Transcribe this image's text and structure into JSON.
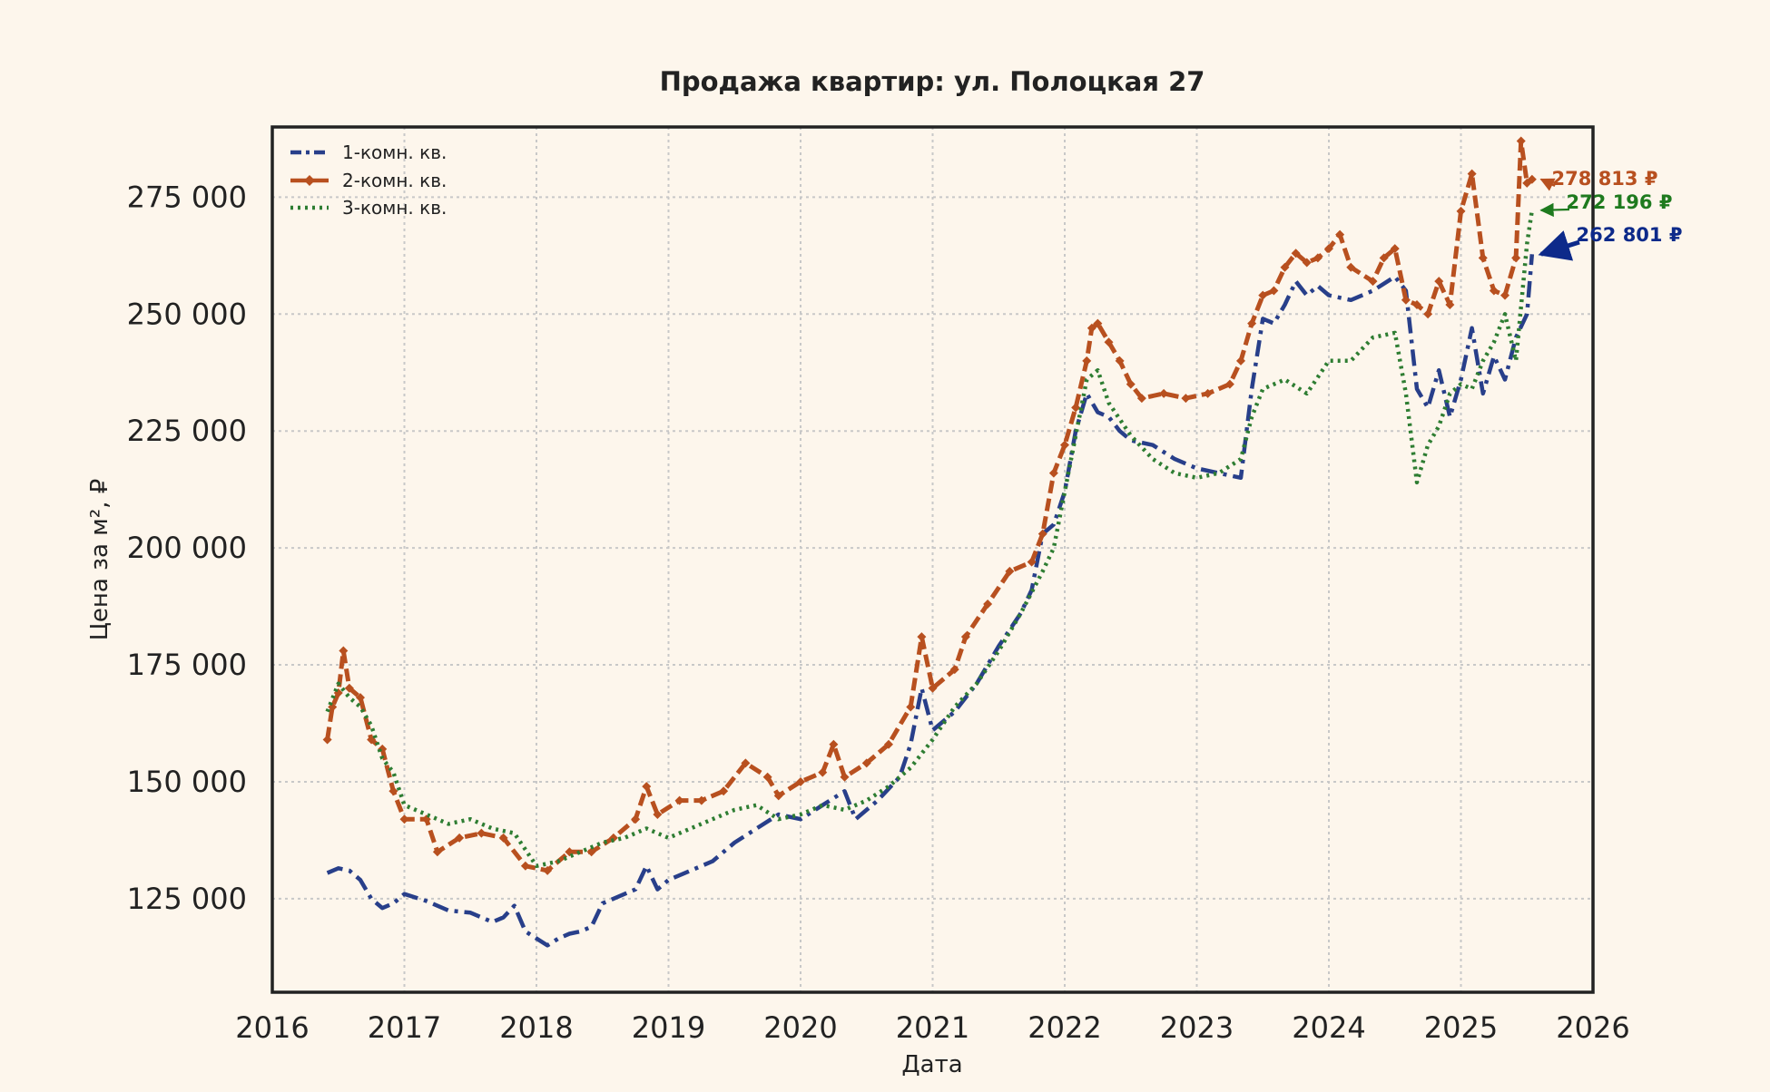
{
  "colors": {
    "background": "#fdf6ec",
    "axes_frame": "#222222",
    "grid": "#c8c8c8",
    "series_1k": "#283f8a",
    "series_2k": "#b8501f",
    "series_3k": "#2e7d32",
    "annotation_1k": "#0d2a8a",
    "annotation_2k": "#b8501f",
    "annotation_3k": "#1e7a1e"
  },
  "chart_data": {
    "type": "line",
    "title": "Продажа квартир: ул. Полоцкая 27",
    "xlabel": "Дата",
    "ylabel": "Цена за м², ₽",
    "x_ticks": [
      "2016",
      "2017",
      "2018",
      "2019",
      "2020",
      "2021",
      "2022",
      "2023",
      "2024",
      "2025",
      "2026"
    ],
    "y_ticks": [
      "125 000",
      "150 000",
      "175 000",
      "200 000",
      "225 000",
      "250 000",
      "275 000"
    ],
    "xlim": [
      "2016-01-01",
      "2026-01-01"
    ],
    "ylim": [
      105000,
      290000
    ],
    "grid": true,
    "legend_position": "top-left",
    "series": [
      {
        "name": "1-комн. кв.",
        "style": "dashdot",
        "color_key": "series_1k",
        "points": [
          [
            "2016-06-01",
            130500
          ],
          [
            "2016-07-01",
            131500
          ],
          [
            "2016-08-01",
            131000
          ],
          [
            "2016-09-01",
            129000
          ],
          [
            "2016-10-01",
            125000
          ],
          [
            "2016-11-01",
            123000
          ],
          [
            "2016-12-01",
            124000
          ],
          [
            "2017-01-01",
            126000
          ],
          [
            "2017-03-01",
            124500
          ],
          [
            "2017-05-01",
            122500
          ],
          [
            "2017-07-01",
            122000
          ],
          [
            "2017-09-01",
            120000
          ],
          [
            "2017-10-01",
            121000
          ],
          [
            "2017-11-01",
            123500
          ],
          [
            "2017-12-01",
            118000
          ],
          [
            "2018-01-01",
            116500
          ],
          [
            "2018-02-01",
            115000
          ],
          [
            "2018-03-01",
            116500
          ],
          [
            "2018-04-01",
            117500
          ],
          [
            "2018-05-01",
            118000
          ],
          [
            "2018-06-01",
            119000
          ],
          [
            "2018-07-01",
            124000
          ],
          [
            "2018-09-01",
            126000
          ],
          [
            "2018-10-01",
            127000
          ],
          [
            "2018-11-01",
            132000
          ],
          [
            "2018-12-01",
            127000
          ],
          [
            "2019-01-01",
            129000
          ],
          [
            "2019-03-01",
            131000
          ],
          [
            "2019-05-01",
            133000
          ],
          [
            "2019-07-01",
            137000
          ],
          [
            "2019-09-01",
            140000
          ],
          [
            "2019-11-01",
            143000
          ],
          [
            "2020-01-01",
            142000
          ],
          [
            "2020-03-01",
            145000
          ],
          [
            "2020-05-01",
            148000
          ],
          [
            "2020-06-01",
            142000
          ],
          [
            "2020-08-01",
            146000
          ],
          [
            "2020-10-01",
            151000
          ],
          [
            "2020-11-01",
            158000
          ],
          [
            "2020-12-01",
            170000
          ],
          [
            "2021-01-01",
            161000
          ],
          [
            "2021-03-01",
            165000
          ],
          [
            "2021-05-01",
            171000
          ],
          [
            "2021-07-01",
            179000
          ],
          [
            "2021-09-01",
            186000
          ],
          [
            "2021-10-01",
            191000
          ],
          [
            "2021-11-01",
            203000
          ],
          [
            "2021-12-01",
            205000
          ],
          [
            "2022-01-01",
            212000
          ],
          [
            "2022-02-01",
            225000
          ],
          [
            "2022-03-01",
            233000
          ],
          [
            "2022-04-01",
            229000
          ],
          [
            "2022-05-01",
            228000
          ],
          [
            "2022-06-01",
            225000
          ],
          [
            "2022-07-01",
            223000
          ],
          [
            "2022-09-01",
            222000
          ],
          [
            "2022-11-01",
            219000
          ],
          [
            "2023-01-01",
            217000
          ],
          [
            "2023-03-01",
            216000
          ],
          [
            "2023-05-01",
            215000
          ],
          [
            "2023-06-01",
            234000
          ],
          [
            "2023-07-01",
            249000
          ],
          [
            "2023-08-01",
            248000
          ],
          [
            "2023-09-01",
            252000
          ],
          [
            "2023-10-01",
            257000
          ],
          [
            "2023-11-01",
            254000
          ],
          [
            "2023-12-01",
            256000
          ],
          [
            "2024-01-01",
            254000
          ],
          [
            "2024-03-01",
            253000
          ],
          [
            "2024-05-01",
            255000
          ],
          [
            "2024-07-01",
            258000
          ],
          [
            "2024-08-01",
            255000
          ],
          [
            "2024-09-01",
            234000
          ],
          [
            "2024-10-01",
            230000
          ],
          [
            "2024-11-01",
            238000
          ],
          [
            "2024-12-01",
            228000
          ],
          [
            "2025-01-01",
            236000
          ],
          [
            "2025-02-01",
            247000
          ],
          [
            "2025-03-01",
            233000
          ],
          [
            "2025-04-01",
            241000
          ],
          [
            "2025-05-01",
            236000
          ],
          [
            "2025-06-01",
            245000
          ],
          [
            "2025-07-01",
            250000
          ],
          [
            "2025-07-15",
            262801
          ]
        ]
      },
      {
        "name": "2-комн. кв.",
        "style": "dashed-diamond",
        "color_key": "series_2k",
        "points": [
          [
            "2016-06-01",
            159000
          ],
          [
            "2016-06-15",
            166000
          ],
          [
            "2016-07-01",
            169000
          ],
          [
            "2016-07-15",
            178000
          ],
          [
            "2016-08-01",
            170000
          ],
          [
            "2016-09-01",
            168000
          ],
          [
            "2016-10-01",
            159000
          ],
          [
            "2016-11-01",
            157000
          ],
          [
            "2016-12-01",
            148000
          ],
          [
            "2017-01-01",
            142000
          ],
          [
            "2017-03-01",
            142000
          ],
          [
            "2017-04-01",
            135000
          ],
          [
            "2017-06-01",
            138000
          ],
          [
            "2017-08-01",
            139000
          ],
          [
            "2017-10-01",
            138000
          ],
          [
            "2017-12-01",
            132000
          ],
          [
            "2018-02-01",
            131000
          ],
          [
            "2018-04-01",
            135000
          ],
          [
            "2018-06-01",
            135000
          ],
          [
            "2018-08-01",
            138000
          ],
          [
            "2018-10-01",
            142000
          ],
          [
            "2018-11-01",
            149000
          ],
          [
            "2018-12-01",
            143000
          ],
          [
            "2019-02-01",
            146000
          ],
          [
            "2019-04-01",
            146000
          ],
          [
            "2019-06-01",
            148000
          ],
          [
            "2019-08-01",
            154000
          ],
          [
            "2019-10-01",
            151000
          ],
          [
            "2019-11-01",
            147000
          ],
          [
            "2020-01-01",
            150000
          ],
          [
            "2020-03-01",
            152000
          ],
          [
            "2020-04-01",
            158000
          ],
          [
            "2020-05-01",
            151000
          ],
          [
            "2020-07-01",
            154000
          ],
          [
            "2020-09-01",
            158000
          ],
          [
            "2020-11-01",
            166000
          ],
          [
            "2020-12-01",
            181000
          ],
          [
            "2021-01-01",
            170000
          ],
          [
            "2021-03-01",
            174000
          ],
          [
            "2021-04-01",
            181000
          ],
          [
            "2021-06-01",
            188000
          ],
          [
            "2021-08-01",
            195000
          ],
          [
            "2021-10-01",
            197000
          ],
          [
            "2021-11-01",
            203000
          ],
          [
            "2021-12-01",
            216000
          ],
          [
            "2022-01-01",
            222000
          ],
          [
            "2022-02-01",
            230000
          ],
          [
            "2022-03-01",
            240000
          ],
          [
            "2022-03-15",
            247000
          ],
          [
            "2022-04-01",
            248000
          ],
          [
            "2022-05-01",
            244000
          ],
          [
            "2022-06-01",
            240000
          ],
          [
            "2022-07-01",
            235000
          ],
          [
            "2022-08-01",
            232000
          ],
          [
            "2022-10-01",
            233000
          ],
          [
            "2022-12-01",
            232000
          ],
          [
            "2023-02-01",
            233000
          ],
          [
            "2023-04-01",
            235000
          ],
          [
            "2023-05-01",
            240000
          ],
          [
            "2023-06-01",
            248000
          ],
          [
            "2023-07-01",
            254000
          ],
          [
            "2023-08-01",
            255000
          ],
          [
            "2023-09-01",
            260000
          ],
          [
            "2023-10-01",
            263000
          ],
          [
            "2023-11-01",
            261000
          ],
          [
            "2023-12-01",
            262000
          ],
          [
            "2024-01-01",
            264000
          ],
          [
            "2024-02-01",
            267000
          ],
          [
            "2024-03-01",
            260000
          ],
          [
            "2024-05-01",
            257000
          ],
          [
            "2024-06-01",
            262000
          ],
          [
            "2024-07-01",
            264000
          ],
          [
            "2024-08-01",
            253000
          ],
          [
            "2024-09-01",
            252000
          ],
          [
            "2024-10-01",
            250000
          ],
          [
            "2024-11-01",
            257000
          ],
          [
            "2024-12-01",
            252000
          ],
          [
            "2025-01-01",
            272000
          ],
          [
            "2025-02-01",
            280000
          ],
          [
            "2025-03-01",
            262000
          ],
          [
            "2025-04-01",
            255000
          ],
          [
            "2025-05-01",
            254000
          ],
          [
            "2025-06-01",
            262000
          ],
          [
            "2025-06-15",
            287000
          ],
          [
            "2025-07-01",
            278000
          ],
          [
            "2025-07-15",
            278813
          ]
        ]
      },
      {
        "name": "3-комн. кв.",
        "style": "dotted",
        "color_key": "series_3k",
        "points": [
          [
            "2016-06-01",
            165000
          ],
          [
            "2016-07-01",
            171000
          ],
          [
            "2016-08-01",
            168000
          ],
          [
            "2016-09-01",
            166000
          ],
          [
            "2016-10-01",
            162000
          ],
          [
            "2016-11-01",
            155000
          ],
          [
            "2016-12-01",
            152000
          ],
          [
            "2017-01-01",
            145000
          ],
          [
            "2017-03-01",
            143000
          ],
          [
            "2017-05-01",
            141000
          ],
          [
            "2017-07-01",
            142000
          ],
          [
            "2017-09-01",
            140000
          ],
          [
            "2017-11-01",
            139000
          ],
          [
            "2018-01-01",
            132000
          ],
          [
            "2018-03-01",
            133000
          ],
          [
            "2018-05-01",
            135000
          ],
          [
            "2018-07-01",
            137000
          ],
          [
            "2018-09-01",
            138000
          ],
          [
            "2018-11-01",
            140000
          ],
          [
            "2019-01-01",
            138000
          ],
          [
            "2019-03-01",
            140000
          ],
          [
            "2019-05-01",
            142000
          ],
          [
            "2019-07-01",
            144000
          ],
          [
            "2019-09-01",
            145000
          ],
          [
            "2019-11-01",
            142000
          ],
          [
            "2020-01-01",
            143000
          ],
          [
            "2020-03-01",
            145000
          ],
          [
            "2020-05-01",
            144000
          ],
          [
            "2020-07-01",
            146000
          ],
          [
            "2020-09-01",
            149000
          ],
          [
            "2020-11-01",
            153000
          ],
          [
            "2021-01-01",
            159000
          ],
          [
            "2021-03-01",
            166000
          ],
          [
            "2021-05-01",
            171000
          ],
          [
            "2021-07-01",
            178000
          ],
          [
            "2021-09-01",
            186000
          ],
          [
            "2021-11-01",
            195000
          ],
          [
            "2021-12-01",
            200000
          ],
          [
            "2022-01-01",
            212000
          ],
          [
            "2022-02-01",
            224000
          ],
          [
            "2022-03-01",
            236000
          ],
          [
            "2022-04-01",
            238000
          ],
          [
            "2022-05-01",
            231000
          ],
          [
            "2022-07-01",
            224000
          ],
          [
            "2022-09-01",
            219000
          ],
          [
            "2022-11-01",
            216000
          ],
          [
            "2023-01-01",
            215000
          ],
          [
            "2023-03-01",
            216000
          ],
          [
            "2023-05-01",
            219000
          ],
          [
            "2023-06-01",
            228000
          ],
          [
            "2023-07-01",
            234000
          ],
          [
            "2023-09-01",
            236000
          ],
          [
            "2023-11-01",
            233000
          ],
          [
            "2024-01-01",
            240000
          ],
          [
            "2024-03-01",
            240000
          ],
          [
            "2024-05-01",
            245000
          ],
          [
            "2024-07-01",
            246000
          ],
          [
            "2024-08-01",
            233000
          ],
          [
            "2024-09-01",
            214000
          ],
          [
            "2024-10-01",
            222000
          ],
          [
            "2024-11-01",
            226000
          ],
          [
            "2024-12-01",
            233000
          ],
          [
            "2025-01-01",
            235000
          ],
          [
            "2025-02-01",
            234000
          ],
          [
            "2025-03-01",
            240000
          ],
          [
            "2025-04-01",
            244000
          ],
          [
            "2025-05-01",
            250000
          ],
          [
            "2025-06-01",
            240000
          ],
          [
            "2025-07-01",
            265000
          ],
          [
            "2025-07-15",
            272196
          ]
        ]
      }
    ],
    "annotations": [
      {
        "text": "278 813 ₽",
        "series": 1,
        "color_key": "annotation_2k"
      },
      {
        "text": "272 196 ₽",
        "series": 2,
        "color_key": "annotation_3k"
      },
      {
        "text": "262 801 ₽",
        "series": 0,
        "color_key": "annotation_1k"
      }
    ]
  }
}
